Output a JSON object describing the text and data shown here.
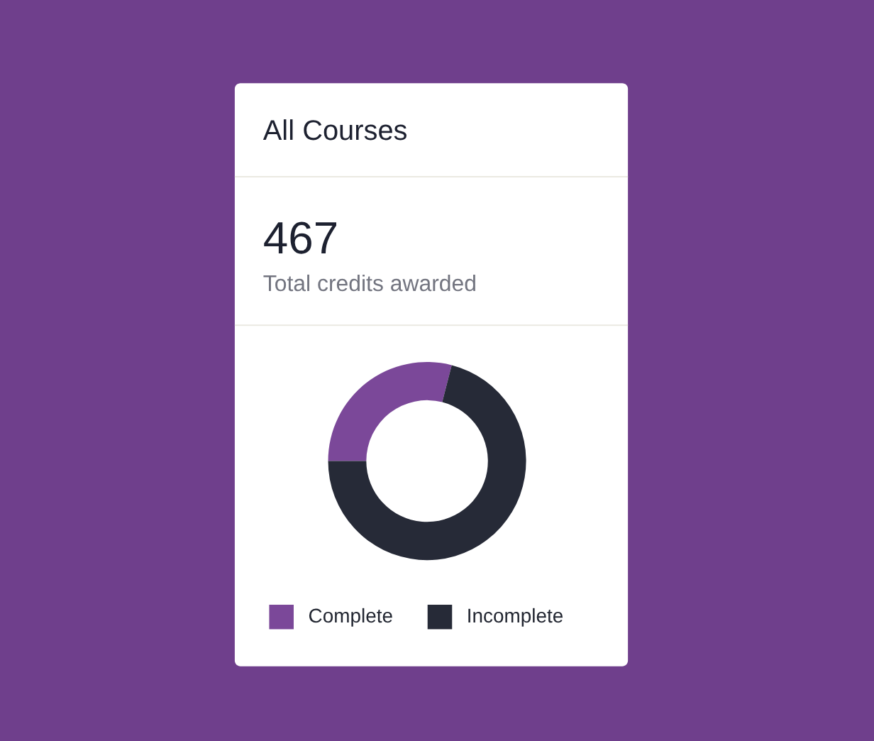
{
  "chart_data": {
    "type": "donut",
    "title": "All Courses",
    "annotations": [
      "467",
      "Total credits awarded"
    ],
    "categories": [
      "Complete",
      "Incomplete"
    ],
    "values": [
      29,
      71
    ],
    "colors": [
      "#7b4899",
      "#262a37"
    ],
    "legend": "bottom"
  }
}
